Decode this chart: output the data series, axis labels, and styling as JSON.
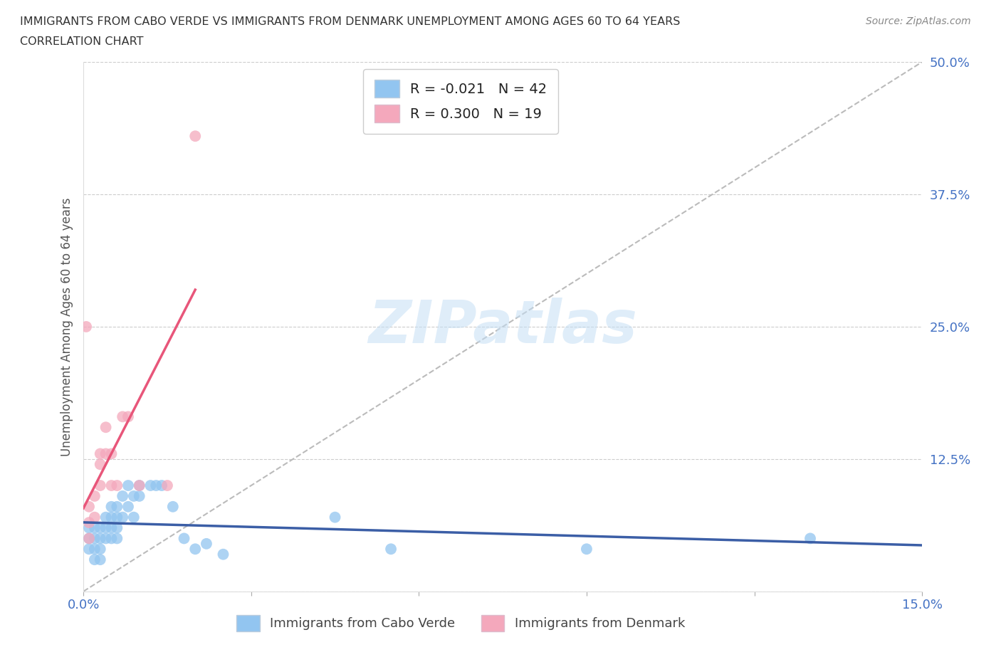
{
  "title_line1": "IMMIGRANTS FROM CABO VERDE VS IMMIGRANTS FROM DENMARK UNEMPLOYMENT AMONG AGES 60 TO 64 YEARS",
  "title_line2": "CORRELATION CHART",
  "source_text": "Source: ZipAtlas.com",
  "xlabel_cabo": "Immigrants from Cabo Verde",
  "xlabel_denmark": "Immigrants from Denmark",
  "ylabel": "Unemployment Among Ages 60 to 64 years",
  "xlim": [
    0.0,
    0.15
  ],
  "ylim": [
    0.0,
    0.5
  ],
  "yticks": [
    0.0,
    0.125,
    0.25,
    0.375,
    0.5
  ],
  "cabo_verde_color": "#92C5F0",
  "denmark_color": "#F4A8BC",
  "cabo_verde_line_color": "#3B5EA6",
  "denmark_line_color": "#E8567A",
  "gray_dash_color": "#BBBBBB",
  "r_cabo_verde": -0.021,
  "n_cabo_verde": 42,
  "r_denmark": 0.3,
  "n_denmark": 19,
  "watermark": "ZIPatlas",
  "cabo_verde_x": [
    0.001,
    0.001,
    0.001,
    0.002,
    0.002,
    0.002,
    0.002,
    0.003,
    0.003,
    0.003,
    0.003,
    0.004,
    0.004,
    0.004,
    0.005,
    0.005,
    0.005,
    0.005,
    0.006,
    0.006,
    0.006,
    0.006,
    0.007,
    0.007,
    0.008,
    0.008,
    0.009,
    0.009,
    0.01,
    0.01,
    0.012,
    0.013,
    0.014,
    0.016,
    0.018,
    0.02,
    0.022,
    0.025,
    0.045,
    0.055,
    0.09,
    0.13
  ],
  "cabo_verde_y": [
    0.06,
    0.05,
    0.04,
    0.06,
    0.05,
    0.04,
    0.03,
    0.06,
    0.05,
    0.04,
    0.03,
    0.07,
    0.06,
    0.05,
    0.08,
    0.07,
    0.06,
    0.05,
    0.08,
    0.07,
    0.06,
    0.05,
    0.09,
    0.07,
    0.1,
    0.08,
    0.09,
    0.07,
    0.1,
    0.09,
    0.1,
    0.1,
    0.1,
    0.08,
    0.05,
    0.04,
    0.045,
    0.035,
    0.07,
    0.04,
    0.04,
    0.05
  ],
  "denmark_x": [
    0.0005,
    0.001,
    0.001,
    0.001,
    0.002,
    0.002,
    0.003,
    0.003,
    0.003,
    0.004,
    0.004,
    0.005,
    0.005,
    0.006,
    0.007,
    0.008,
    0.01,
    0.015,
    0.02
  ],
  "denmark_y": [
    0.25,
    0.05,
    0.065,
    0.08,
    0.07,
    0.09,
    0.1,
    0.12,
    0.13,
    0.13,
    0.155,
    0.1,
    0.13,
    0.1,
    0.165,
    0.165,
    0.1,
    0.1,
    0.43
  ]
}
